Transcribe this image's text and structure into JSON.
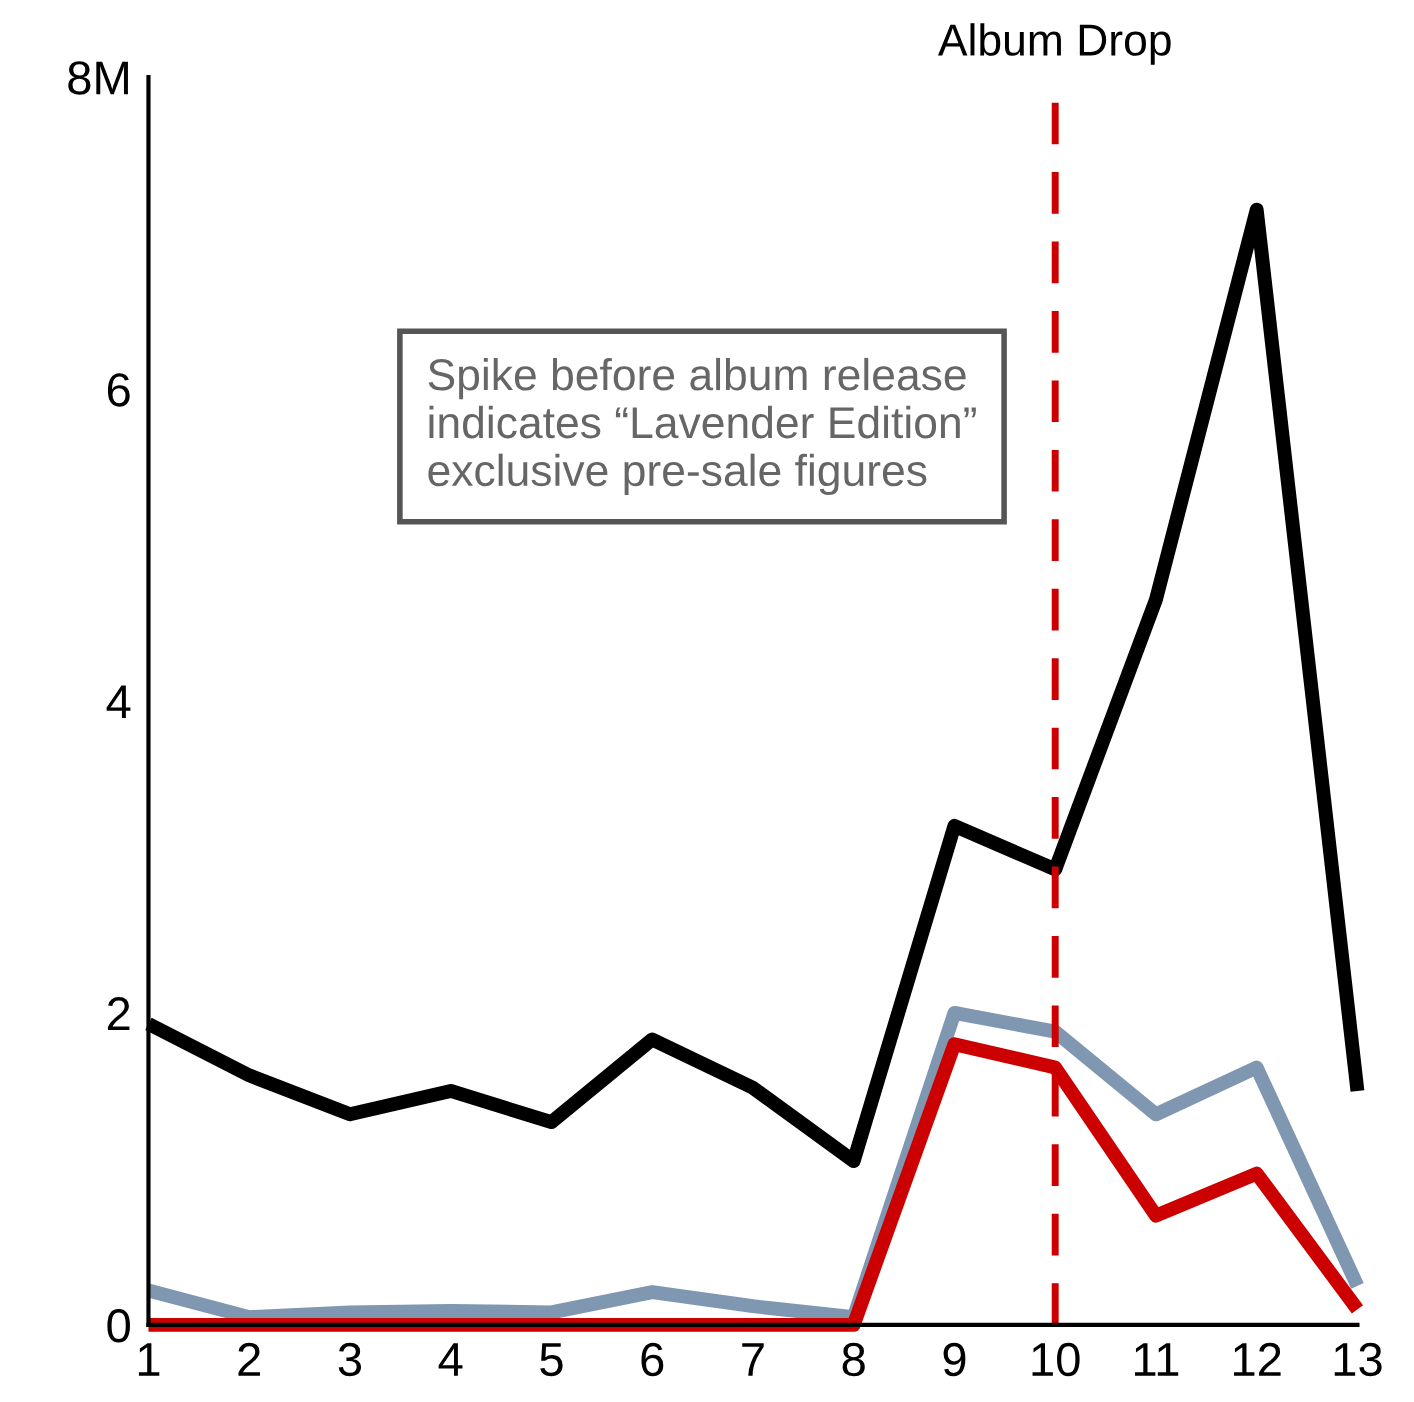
{
  "chart_data": {
    "type": "line",
    "x": [
      1,
      2,
      3,
      4,
      5,
      6,
      7,
      8,
      9,
      10,
      11,
      12,
      13
    ],
    "series": [
      {
        "color": "#000000",
        "values": [
          1.93,
          1.6,
          1.35,
          1.5,
          1.3,
          1.83,
          1.52,
          1.05,
          3.2,
          2.92,
          4.65,
          7.15,
          1.5
        ]
      },
      {
        "color": "#7f97b0",
        "values": [
          0.22,
          0.05,
          0.08,
          0.09,
          0.08,
          0.21,
          0.12,
          0.05,
          2.0,
          1.88,
          1.35,
          1.65,
          0.25
        ]
      },
      {
        "color": "#cc0000",
        "values": [
          0,
          0,
          0,
          0,
          0,
          0,
          0,
          0,
          1.8,
          1.65,
          0.7,
          0.97,
          0.1
        ]
      }
    ],
    "xlim": [
      1,
      13
    ],
    "xticks": [
      1,
      2,
      3,
      4,
      5,
      6,
      7,
      8,
      9,
      10,
      11,
      12,
      13
    ],
    "ylim": [
      0,
      8
    ],
    "yticks": [
      0,
      2,
      4,
      6,
      {
        "value": 8,
        "label": "8M"
      }
    ],
    "ref_lines": [
      {
        "axis": "x",
        "value": 10,
        "label": "Album Drop",
        "color": "#cc0000",
        "line_style": "dashed"
      }
    ],
    "annotations": [
      "Spike before album release indicates “Lavender Edition” exclusive pre-sale figures"
    ],
    "grid": false,
    "legend": false,
    "marker": "none",
    "line_style": "solid"
  }
}
